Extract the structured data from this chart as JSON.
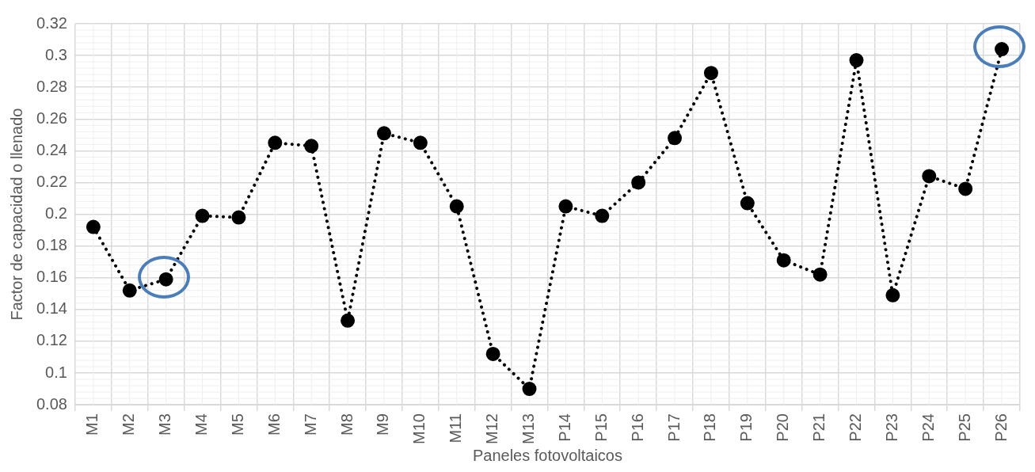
{
  "chart_data": {
    "type": "line",
    "xlabel": "Paneles fotovoltaicos",
    "ylabel": "Factor de capacidad o llenado",
    "categories": [
      "M1",
      "M2",
      "M3",
      "M4",
      "M5",
      "M6",
      "M7",
      "M8",
      "M9",
      "M10",
      "M11",
      "M12",
      "M13",
      "P14",
      "P15",
      "P16",
      "P17",
      "P18",
      "P19",
      "P20",
      "P21",
      "P22",
      "P23",
      "P24",
      "P25",
      "P26"
    ],
    "series": [
      {
        "color": "#000000",
        "values": [
          0.192,
          0.152,
          0.159,
          0.199,
          0.198,
          0.245,
          0.243,
          0.133,
          0.251,
          0.245,
          0.205,
          0.112,
          0.09,
          0.205,
          0.199,
          0.22,
          0.248,
          0.289,
          0.207,
          0.171,
          0.162,
          0.297,
          0.149,
          0.224,
          0.216,
          0.304
        ]
      }
    ],
    "ylim": [
      0.08,
      0.32
    ],
    "yticks": [
      0.08,
      0.1,
      0.12,
      0.14,
      0.16,
      0.18,
      0.2,
      0.22,
      0.24,
      0.26,
      0.28,
      0.3,
      0.32
    ],
    "grid": true,
    "legend": false,
    "marker": "circle",
    "line_style": "dotted"
  }
}
